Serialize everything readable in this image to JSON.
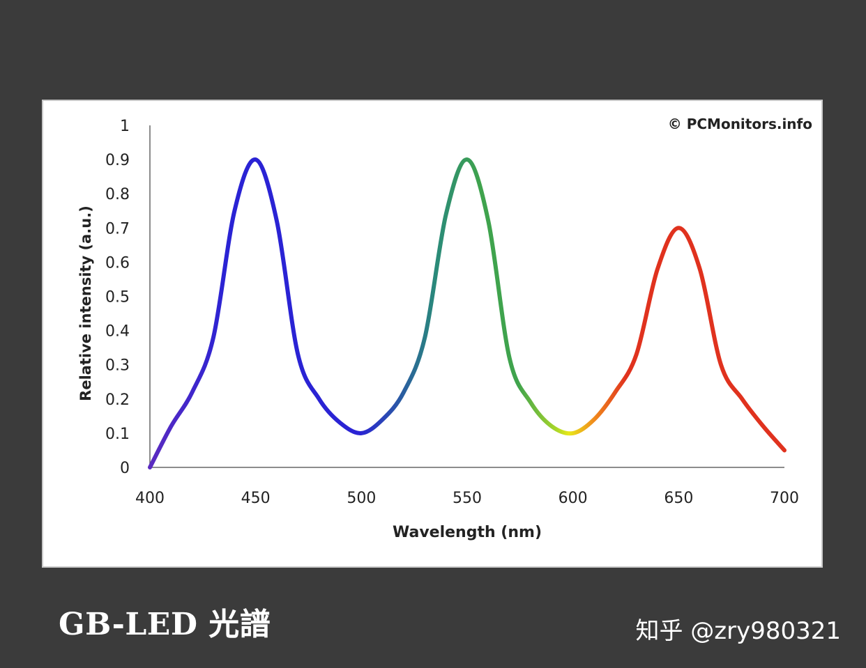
{
  "caption": "GB-LED 光譜",
  "watermark": "知乎 @zry980321",
  "colors": {
    "background": "#3b3b3b",
    "blue": "#2a23d4",
    "violet": "#5b2bc0",
    "teal": "#2a8a7a",
    "green": "#3fa34d",
    "yellow": "#e8e81a",
    "orange": "#f08a1c",
    "red": "#e0321e"
  },
  "chart_data": {
    "type": "line",
    "title": "",
    "copyright": "© PCMonitors.info",
    "xlabel": "Wavelength (nm)",
    "ylabel": "Relative intensity (a.u.)",
    "xlim": [
      400,
      700
    ],
    "ylim": [
      0,
      1
    ],
    "x_ticks": [
      "400",
      "450",
      "500",
      "550",
      "600",
      "650",
      "700"
    ],
    "y_ticks": [
      "0",
      "0.1",
      "0.2",
      "0.3",
      "0.4",
      "0.5",
      "0.6",
      "0.7",
      "0.8",
      "0.9",
      "1"
    ],
    "grid": false,
    "series": [
      {
        "x": [
          400,
          410,
          420,
          430,
          440,
          450,
          460,
          470,
          480,
          490,
          500,
          510,
          520,
          530,
          540,
          550,
          560,
          570,
          580,
          590,
          600,
          610,
          620,
          630,
          640,
          650,
          660,
          670,
          680,
          690,
          700
        ],
        "y": [
          0.0,
          0.12,
          0.22,
          0.38,
          0.75,
          0.9,
          0.72,
          0.33,
          0.2,
          0.13,
          0.1,
          0.14,
          0.22,
          0.38,
          0.74,
          0.9,
          0.72,
          0.32,
          0.19,
          0.12,
          0.1,
          0.14,
          0.22,
          0.33,
          0.58,
          0.7,
          0.58,
          0.3,
          0.2,
          0.12,
          0.05
        ]
      }
    ]
  }
}
